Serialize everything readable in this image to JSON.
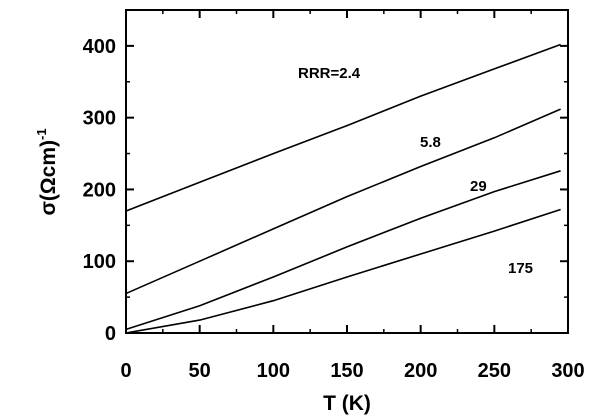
{
  "chart_data": {
    "type": "line",
    "xlabel": "T (K)",
    "ylabel_main": "σ(Ωcm)",
    "ylabel_sup": "-1",
    "xlim": [
      0,
      300
    ],
    "ylim": [
      0,
      450
    ],
    "x_ticks": [
      0,
      50,
      100,
      150,
      200,
      250,
      300
    ],
    "y_ticks": [
      0,
      100,
      200,
      300,
      400
    ],
    "grid": false,
    "line_color": "#000000",
    "series": [
      {
        "label": "RRR=2.4",
        "x": [
          0,
          50,
          100,
          150,
          200,
          250,
          295
        ],
        "y": [
          170,
          210,
          250,
          289,
          330,
          368,
          402
        ]
      },
      {
        "label": "5.8",
        "x": [
          0,
          50,
          100,
          150,
          200,
          250,
          295
        ],
        "y": [
          55,
          100,
          145,
          190,
          232,
          272,
          312
        ]
      },
      {
        "label": "29",
        "x": [
          0,
          50,
          100,
          150,
          200,
          250,
          295
        ],
        "y": [
          5,
          38,
          78,
          120,
          160,
          197,
          226
        ]
      },
      {
        "label": "175",
        "x": [
          0,
          50,
          100,
          150,
          200,
          250,
          295
        ],
        "y": [
          0,
          18,
          45,
          78,
          110,
          142,
          172
        ]
      }
    ]
  }
}
